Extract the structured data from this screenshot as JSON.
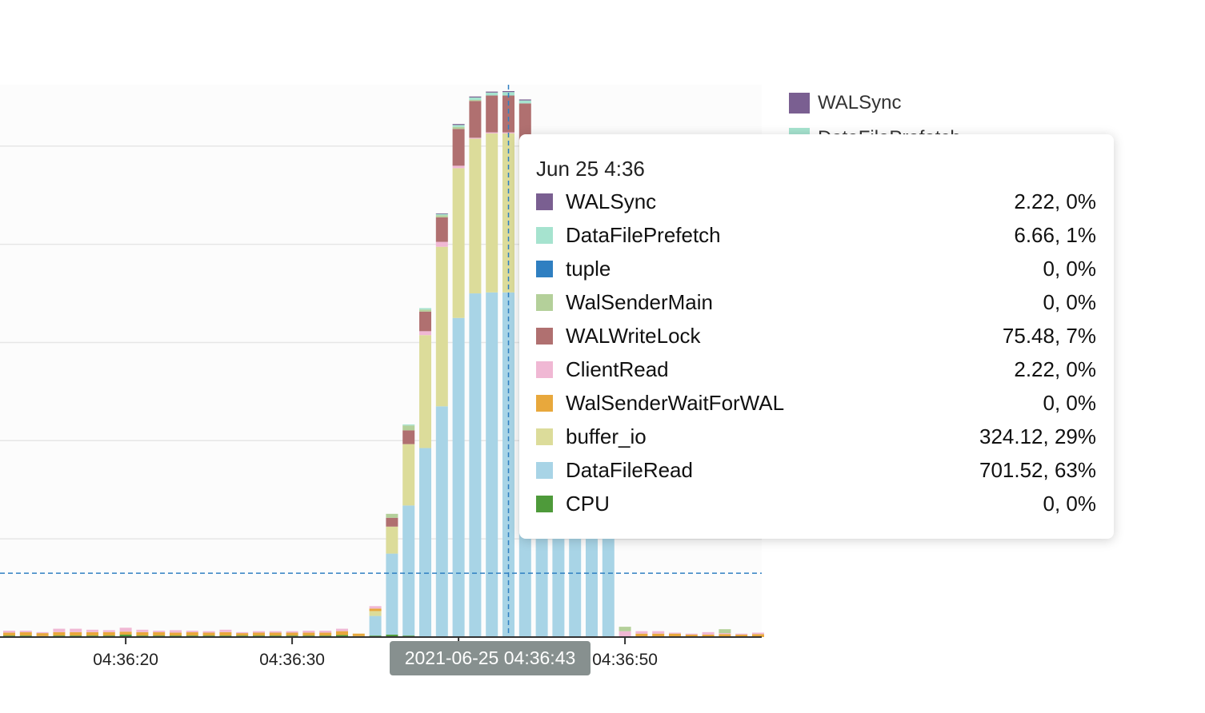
{
  "chart_data": {
    "type": "bar",
    "stacked": true,
    "x": [
      "04:36:13",
      "04:36:14",
      "04:36:15",
      "04:36:16",
      "04:36:17",
      "04:36:18",
      "04:36:19",
      "04:36:20",
      "04:36:21",
      "04:36:22",
      "04:36:23",
      "04:36:24",
      "04:36:25",
      "04:36:26",
      "04:36:27",
      "04:36:28",
      "04:36:29",
      "04:36:30",
      "04:36:31",
      "04:36:32",
      "04:36:33",
      "04:36:34",
      "04:36:35",
      "04:36:36",
      "04:36:37",
      "04:36:38",
      "04:36:39",
      "04:36:40",
      "04:36:41",
      "04:36:42",
      "04:36:43",
      "04:36:44",
      "04:36:45",
      "04:36:46",
      "04:36:47",
      "04:36:48",
      "04:36:49",
      "04:36:50",
      "04:36:51",
      "04:36:52",
      "04:36:53",
      "04:36:54",
      "04:36:55",
      "04:36:56",
      "04:36:57",
      "04:36:58"
    ],
    "x_ticks": [
      "04:36:20",
      "04:36:30",
      "04:36:50"
    ],
    "ylim": [
      0,
      1125
    ],
    "grid": true,
    "reference_line_value": 130,
    "series": [
      {
        "name": "CPU",
        "color": "#4e9a3a",
        "values": [
          3,
          3,
          2,
          3,
          3,
          3,
          3,
          5,
          3,
          3,
          3,
          3,
          3,
          3,
          3,
          3,
          3,
          3,
          3,
          3,
          4,
          2,
          3,
          5,
          3,
          0,
          0,
          0,
          0,
          0,
          0,
          0,
          0,
          0,
          0,
          0,
          0,
          0,
          0,
          0,
          0,
          0,
          0,
          0,
          0,
          0
        ]
      },
      {
        "name": "DataFileRead",
        "color": "#a8d4e6",
        "values": [
          0,
          0,
          0,
          0,
          0,
          0,
          0,
          0,
          0,
          0,
          0,
          0,
          0,
          0,
          0,
          0,
          0,
          0,
          0,
          0,
          0,
          0,
          40,
          165,
          265,
          385,
          470,
          650,
          700,
          702,
          702,
          690,
          690,
          690,
          690,
          690,
          690,
          0,
          0,
          0,
          0,
          0,
          0,
          0,
          0,
          0
        ]
      },
      {
        "name": "buffer_io",
        "color": "#dcdc9a",
        "values": [
          0,
          0,
          0,
          0,
          0,
          0,
          0,
          0,
          0,
          0,
          0,
          0,
          0,
          0,
          0,
          0,
          0,
          0,
          0,
          0,
          0,
          0,
          10,
          55,
          125,
          230,
          325,
          305,
          315,
          324,
          324,
          320,
          0,
          0,
          0,
          0,
          0,
          0,
          0,
          0,
          0,
          0,
          0,
          0,
          0,
          0
        ]
      },
      {
        "name": "WalSenderWaitForWAL",
        "color": "#e8a83c",
        "values": [
          6,
          7,
          6,
          7,
          7,
          7,
          7,
          6,
          7,
          7,
          6,
          7,
          6,
          7,
          5,
          6,
          6,
          6,
          6,
          6,
          8,
          5,
          5,
          0,
          0,
          0,
          0,
          0,
          0,
          0,
          0,
          0,
          0,
          0,
          0,
          0,
          0,
          0,
          7,
          7,
          7,
          5,
          5,
          6,
          5,
          6
        ]
      },
      {
        "name": "ClientRead",
        "color": "#f0b8d4",
        "values": [
          4,
          3,
          2,
          7,
          7,
          5,
          4,
          8,
          5,
          3,
          5,
          3,
          3,
          5,
          2,
          3,
          3,
          3,
          4,
          4,
          5,
          0,
          5,
          0,
          0,
          8,
          10,
          5,
          2,
          2,
          2,
          2,
          2,
          0,
          0,
          0,
          0,
          12,
          5,
          5,
          2,
          2,
          5,
          2,
          2,
          3
        ]
      },
      {
        "name": "WALWriteLock",
        "color": "#b07070",
        "values": [
          0,
          0,
          0,
          0,
          0,
          0,
          0,
          0,
          0,
          0,
          0,
          0,
          0,
          0,
          0,
          0,
          0,
          0,
          0,
          0,
          0,
          0,
          0,
          18,
          28,
          40,
          50,
          75,
          75,
          75,
          75,
          75,
          75,
          75,
          75,
          75,
          75,
          0,
          0,
          0,
          0,
          0,
          0,
          0,
          0,
          0
        ]
      },
      {
        "name": "WalSenderMain",
        "color": "#b4d09a",
        "values": [
          0,
          0,
          0,
          0,
          0,
          0,
          0,
          0,
          0,
          0,
          0,
          0,
          0,
          0,
          0,
          0,
          0,
          0,
          0,
          0,
          0,
          0,
          0,
          8,
          10,
          4,
          4,
          4,
          2,
          0,
          0,
          0,
          0,
          0,
          0,
          0,
          0,
          9,
          0,
          0,
          0,
          0,
          0,
          8,
          0,
          0
        ]
      },
      {
        "name": "tuple",
        "color": "#2f7fc1",
        "values": [
          0,
          0,
          0,
          0,
          0,
          0,
          0,
          0,
          0,
          0,
          0,
          0,
          0,
          0,
          0,
          0,
          0,
          0,
          0,
          0,
          0,
          0,
          0,
          0,
          0,
          0,
          0,
          0,
          0,
          0,
          0,
          0,
          3,
          18,
          18,
          20,
          18,
          0,
          0,
          0,
          0,
          0,
          0,
          0,
          0,
          0
        ]
      },
      {
        "name": "DataFilePrefetch",
        "color": "#a6e3cf",
        "values": [
          0,
          0,
          0,
          0,
          0,
          0,
          0,
          0,
          0,
          0,
          0,
          0,
          0,
          0,
          0,
          0,
          0,
          0,
          0,
          0,
          0,
          0,
          0,
          0,
          2,
          3,
          3,
          4,
          5,
          6,
          7,
          6,
          6,
          6,
          6,
          6,
          6,
          0,
          0,
          0,
          0,
          0,
          0,
          0,
          0,
          0
        ]
      },
      {
        "name": "WALSync",
        "color": "#7a5f91",
        "values": [
          0,
          0,
          0,
          0,
          0,
          0,
          0,
          0,
          0,
          0,
          0,
          0,
          0,
          0,
          0,
          0,
          0,
          0,
          0,
          0,
          0,
          0,
          0,
          0,
          0,
          0,
          1,
          2,
          2,
          2,
          2,
          2,
          2,
          2,
          2,
          2,
          2,
          0,
          0,
          0,
          0,
          0,
          0,
          0,
          0,
          0
        ]
      }
    ]
  },
  "legend": {
    "items": [
      {
        "name": "WALSync",
        "color": "#7a5f91"
      },
      {
        "name": "DataFilePrefetch",
        "color": "#a6e3cf"
      }
    ]
  },
  "tooltip": {
    "title": "Jun 25 4:36",
    "rows": [
      {
        "name": "WALSync",
        "value": "2.22, 0%",
        "color": "#7a5f91"
      },
      {
        "name": "DataFilePrefetch",
        "value": "6.66, 1%",
        "color": "#a6e3cf"
      },
      {
        "name": "tuple",
        "value": "0, 0%",
        "color": "#2f7fc1"
      },
      {
        "name": "WalSenderMain",
        "value": "0, 0%",
        "color": "#b4d09a"
      },
      {
        "name": "WALWriteLock",
        "value": "75.48, 7%",
        "color": "#b07070"
      },
      {
        "name": "ClientRead",
        "value": "2.22, 0%",
        "color": "#f0b8d4"
      },
      {
        "name": "WalSenderWaitForWAL",
        "value": "0, 0%",
        "color": "#e8a83c"
      },
      {
        "name": "buffer_io",
        "value": "324.12, 29%",
        "color": "#dcdc9a"
      },
      {
        "name": "DataFileRead",
        "value": "701.52, 63%",
        "color": "#a8d4e6"
      },
      {
        "name": "CPU",
        "value": "0, 0%",
        "color": "#4e9a3a"
      }
    ]
  },
  "x_badge": "2021-06-25 04:36:43"
}
